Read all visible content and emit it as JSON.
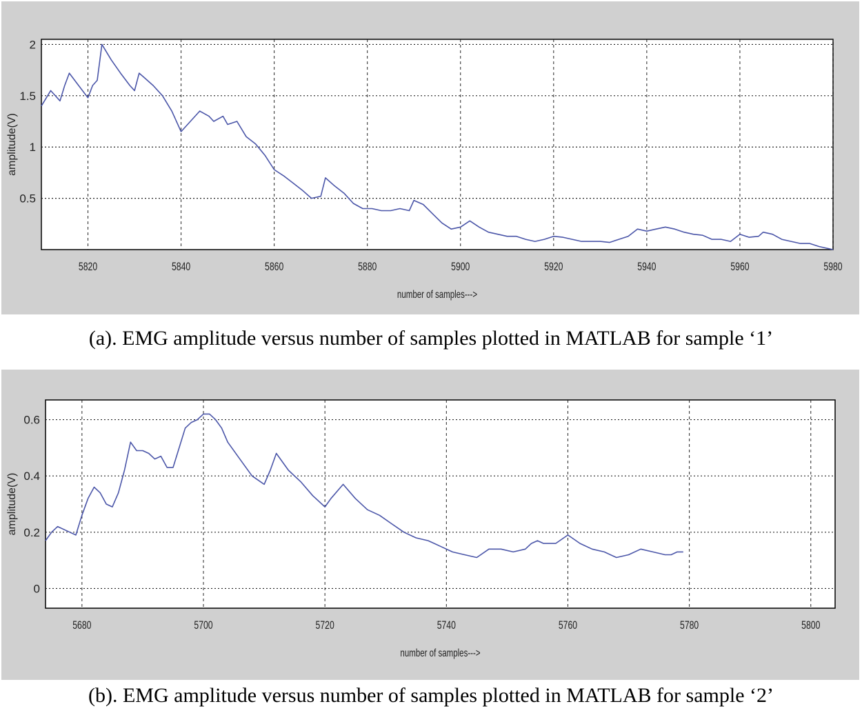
{
  "chart_data": [
    {
      "type": "line",
      "caption": "(a). EMG amplitude versus number of samples plotted in MATLAB for sample ‘1’",
      "xlabel": "number of samples--->",
      "ylabel": "amplitude(V)",
      "xlim": [
        5810,
        5980
      ],
      "ylim": [
        0,
        2.05
      ],
      "xticks": [
        5820,
        5840,
        5860,
        5880,
        5900,
        5920,
        5940,
        5960,
        5980
      ],
      "yticks": [
        0.5,
        1,
        1.5,
        2
      ],
      "ytick_labels": [
        "0.5",
        "1",
        "1.5",
        "2"
      ],
      "grid": true,
      "line_color": "#4a55a8",
      "x": [
        5810,
        5812,
        5814,
        5815,
        5816,
        5818,
        5820,
        5821,
        5822,
        5823,
        5825,
        5827,
        5829,
        5830,
        5831,
        5832,
        5834,
        5836,
        5838,
        5840,
        5842,
        5844,
        5846,
        5847,
        5849,
        5850,
        5852,
        5854,
        5856,
        5858,
        5860,
        5862,
        5864,
        5866,
        5868,
        5870,
        5871,
        5873,
        5875,
        5877,
        5879,
        5881,
        5883,
        5885,
        5887,
        5889,
        5890,
        5892,
        5894,
        5896,
        5898,
        5900,
        5902,
        5904,
        5906,
        5908,
        5910,
        5912,
        5914,
        5916,
        5918,
        5920,
        5922,
        5924,
        5926,
        5928,
        5930,
        5932,
        5934,
        5936,
        5938,
        5940,
        5942,
        5944,
        5946,
        5948,
        5950,
        5952,
        5954,
        5956,
        5958,
        5960,
        5962,
        5964,
        5965,
        5967,
        5969,
        5971,
        5973,
        5975,
        5977,
        5979,
        5980
      ],
      "y": [
        1.4,
        1.55,
        1.45,
        1.6,
        1.72,
        1.6,
        1.48,
        1.6,
        1.65,
        2.0,
        1.85,
        1.72,
        1.6,
        1.55,
        1.72,
        1.68,
        1.6,
        1.5,
        1.35,
        1.15,
        1.25,
        1.35,
        1.3,
        1.25,
        1.3,
        1.22,
        1.25,
        1.1,
        1.03,
        0.92,
        0.78,
        0.72,
        0.65,
        0.58,
        0.5,
        0.52,
        0.7,
        0.62,
        0.55,
        0.45,
        0.4,
        0.4,
        0.38,
        0.38,
        0.4,
        0.38,
        0.48,
        0.44,
        0.35,
        0.26,
        0.2,
        0.22,
        0.28,
        0.22,
        0.17,
        0.15,
        0.13,
        0.13,
        0.1,
        0.08,
        0.1,
        0.13,
        0.12,
        0.1,
        0.08,
        0.08,
        0.08,
        0.07,
        0.1,
        0.13,
        0.2,
        0.18,
        0.2,
        0.22,
        0.2,
        0.17,
        0.15,
        0.14,
        0.1,
        0.1,
        0.08,
        0.15,
        0.12,
        0.13,
        0.17,
        0.15,
        0.1,
        0.08,
        0.06,
        0.06,
        0.03,
        0.01,
        0.0
      ]
    },
    {
      "type": "line",
      "caption": "(b). EMG amplitude versus number of samples plotted in MATLAB for sample ‘2’",
      "xlabel": "number of samples--->",
      "ylabel": "amplitude(V)",
      "xlim": [
        5674,
        5804
      ],
      "ylim": [
        -0.07,
        0.67
      ],
      "xticks": [
        5680,
        5700,
        5720,
        5740,
        5760,
        5780,
        5800
      ],
      "yticks": [
        0,
        0.2,
        0.4,
        0.6
      ],
      "ytick_labels": [
        "0",
        "0.2",
        "0.4",
        "0.6"
      ],
      "grid": true,
      "line_color": "#4a55a8",
      "x": [
        5674,
        5675,
        5676,
        5678,
        5679,
        5680,
        5681,
        5682,
        5683,
        5684,
        5685,
        5686,
        5687,
        5688,
        5689,
        5690,
        5691,
        5692,
        5693,
        5694,
        5695,
        5696,
        5697,
        5698,
        5699,
        5700,
        5701,
        5702,
        5703,
        5704,
        5706,
        5708,
        5710,
        5711,
        5712,
        5714,
        5716,
        5718,
        5720,
        5721,
        5723,
        5725,
        5727,
        5729,
        5731,
        5733,
        5735,
        5737,
        5739,
        5741,
        5743,
        5745,
        5747,
        5749,
        5751,
        5753,
        5754,
        5755,
        5756,
        5757,
        5758,
        5760,
        5762,
        5764,
        5766,
        5768,
        5770,
        5772,
        5774,
        5776,
        5777,
        5778,
        5779
      ],
      "y": [
        0.17,
        0.2,
        0.22,
        0.2,
        0.19,
        0.26,
        0.32,
        0.36,
        0.34,
        0.3,
        0.29,
        0.34,
        0.42,
        0.52,
        0.49,
        0.49,
        0.48,
        0.46,
        0.47,
        0.43,
        0.43,
        0.5,
        0.57,
        0.59,
        0.6,
        0.62,
        0.62,
        0.6,
        0.57,
        0.52,
        0.46,
        0.4,
        0.37,
        0.42,
        0.48,
        0.42,
        0.38,
        0.33,
        0.29,
        0.32,
        0.37,
        0.32,
        0.28,
        0.26,
        0.23,
        0.2,
        0.18,
        0.17,
        0.15,
        0.13,
        0.12,
        0.11,
        0.14,
        0.14,
        0.13,
        0.14,
        0.16,
        0.17,
        0.16,
        0.16,
        0.16,
        0.19,
        0.16,
        0.14,
        0.13,
        0.11,
        0.12,
        0.14,
        0.13,
        0.12,
        0.12,
        0.13,
        0.13
      ]
    }
  ]
}
